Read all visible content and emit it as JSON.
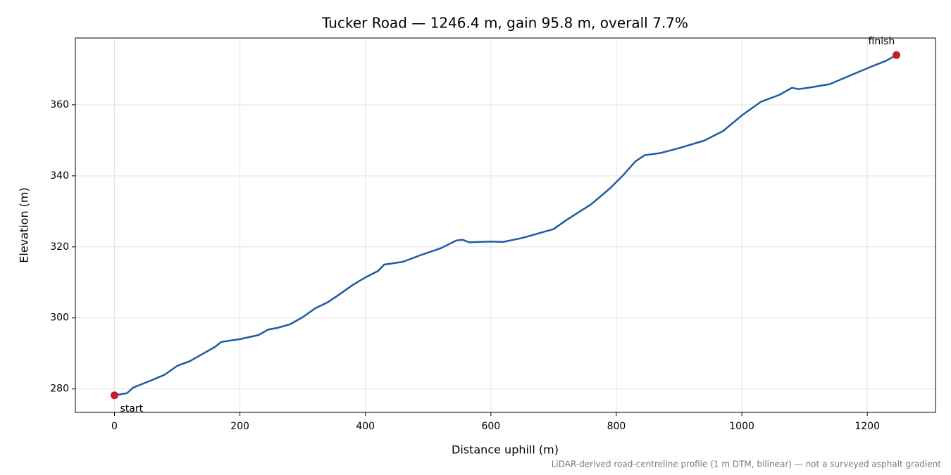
{
  "chart_data": {
    "type": "line",
    "title": "Tucker Road — 1246.4 m, gain 95.8 m, overall 7.7%",
    "x_label": "Distance uphill (m)",
    "y_label": "Elevation (m)",
    "note": "LiDAR-derived road-centreline profile (1 m DTM, bilinear) — not a surveyed asphalt gradient",
    "x": [
      0,
      10,
      20,
      30,
      50,
      60,
      80,
      100,
      120,
      140,
      160,
      170,
      180,
      200,
      230,
      245,
      260,
      280,
      300,
      320,
      340,
      360,
      380,
      400,
      420,
      430,
      460,
      490,
      520,
      545,
      555,
      565,
      600,
      620,
      650,
      680,
      700,
      720,
      760,
      790,
      810,
      830,
      845,
      870,
      900,
      940,
      970,
      1000,
      1030,
      1060,
      1080,
      1090,
      1110,
      1140,
      1180,
      1210,
      1230,
      1246.4
    ],
    "series": [
      {
        "color": "#1f5aa6",
        "values": [
          278.2,
          278.5,
          278.8,
          280.4,
          281.8,
          282.5,
          284.0,
          286.5,
          287.8,
          289.8,
          291.8,
          293.2,
          293.5,
          294.0,
          295.2,
          296.7,
          297.2,
          298.2,
          300.2,
          302.7,
          304.4,
          306.8,
          309.3,
          311.4,
          313.2,
          315.0,
          315.8,
          317.8,
          319.6,
          321.8,
          322.0,
          321.3,
          321.5,
          321.4,
          322.5,
          324.0,
          325.0,
          327.5,
          332.0,
          336.5,
          340.0,
          344.0,
          345.8,
          346.4,
          347.8,
          349.9,
          352.6,
          357.0,
          360.8,
          362.8,
          364.8,
          364.4,
          364.9,
          365.8,
          368.8,
          371.0,
          372.4,
          374.0
        ]
      }
    ],
    "markers": {
      "color": "#c0202a",
      "x": [
        0,
        1246.4
      ],
      "values": [
        278.2,
        374.0
      ],
      "labels": [
        "start",
        "finish"
      ]
    },
    "xlim": [
      -62.3,
      1308.7
    ],
    "ylim": [
      273.4,
      378.8
    ],
    "xticks": [
      0,
      200,
      400,
      600,
      800,
      1000,
      1200
    ],
    "yticks": [
      280,
      300,
      320,
      340,
      360
    ],
    "grid": true
  }
}
